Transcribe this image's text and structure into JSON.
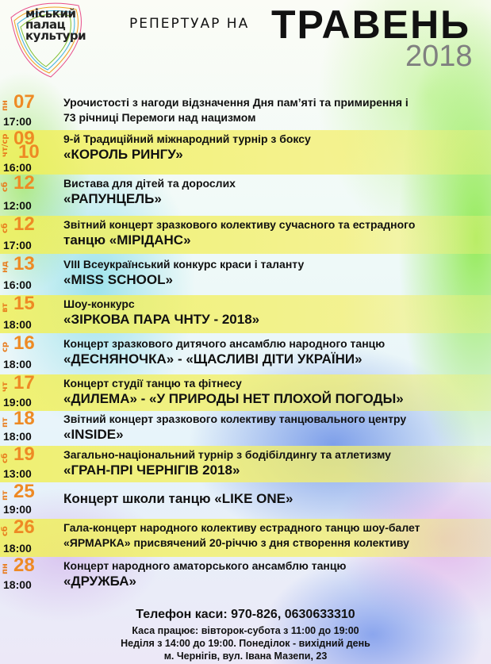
{
  "logo": {
    "line1": "міський",
    "line2": "палац",
    "line3": "культури"
  },
  "header": {
    "prefix": "РЕПЕРТУАР НА",
    "month": "ТРАВЕНЬ",
    "year": "2018"
  },
  "colors": {
    "date": "#ee8a24",
    "highlight": "#f0f05a",
    "text": "#111111"
  },
  "events": [
    {
      "dow": "пн",
      "date": "07",
      "time": "17:00",
      "line1": "Урочистості з нагоди відзначення Дня пам’яті та примирення і",
      "line2": "73 річниці Перемоги над нацизмом",
      "line2_small": true,
      "highlight": false
    },
    {
      "dow": "чт/ср",
      "date": "09",
      "date2": "10",
      "time": "16:00",
      "line1": "9-й Традиційний міжнародний турнір з боксу",
      "line2": "«КОРОЛЬ РИНГУ»",
      "highlight": true
    },
    {
      "dow": "сб",
      "date": "12",
      "time": "12:00",
      "line1": "Вистава для дітей та дорослих",
      "line2": "«РАПУНЦЕЛЬ»",
      "highlight": false
    },
    {
      "dow": "сб",
      "date": "12",
      "time": "17:00",
      "line1": "Звітний концерт зразкового колективу сучасного та естрадного",
      "line2": "танцю «МІРІДАНС»",
      "highlight": true
    },
    {
      "dow": "нд",
      "date": "13",
      "time": "16:00",
      "line1": "VIII Всеукраїнський конкурс краси і таланту",
      "line2": "«MISS SCHOOL»",
      "highlight": false
    },
    {
      "dow": "вт",
      "date": "15",
      "time": "18:00",
      "line1": "Шоу-конкурс",
      "line2": "«ЗІРКОВА ПАРА ЧНТУ - 2018»",
      "highlight": true
    },
    {
      "dow": "ср",
      "date": "16",
      "time": "18:00",
      "line1": "Концерт зразкового дитячого ансамблю народного танцю",
      "line2": " «ДЕСНЯНОЧКА» - «ЩАСЛИВІ ДІТИ УКРАЇНИ»",
      "highlight": false
    },
    {
      "dow": "чт",
      "date": "17",
      "time": "19:00",
      "line1": "Концерт студії танцю та фітнесу",
      "line2": "«ДИЛЕМА» - «У ПРИРОДЫ НЕТ ПЛОХОЙ ПОГОДЫ»",
      "highlight": true
    },
    {
      "dow": "пт",
      "date": "18",
      "time": "18:00",
      "line1": "Звітний концерт зразкового колективу танцювального центру",
      "line2": "«INSIDE»",
      "highlight": false
    },
    {
      "dow": "сб",
      "date": "19",
      "time": "13:00",
      "line1": "Загально-національний турнір з бодібілдингу та атлетизму",
      "line2": "«ГРАН-ПРІ  ЧЕРНІГІВ 2018»",
      "highlight": true
    },
    {
      "dow": "пт",
      "date": "25",
      "time": "19:00",
      "line1": "",
      "line2": "Концерт школи танцю «LIKE ONE»",
      "highlight": false
    },
    {
      "dow": "сб",
      "date": "26",
      "time": "18:00",
      "line1": "Гала-концерт народного колективу естрадного танцю шоу-балет",
      "line2": "«ЯРМАРКА» присвячений 20-річчю з дня створення колективу",
      "line2_small": true,
      "highlight": true
    },
    {
      "dow": "пн",
      "date": "28",
      "time": "18:00",
      "line1": "Концерт народного аматорського ансамблю танцю",
      "line2": "«ДРУЖБА»",
      "highlight": false
    }
  ],
  "footer": {
    "phone": "Телефон каси: 970-826, 0630633310",
    "hours1": "Каса працює: вівторок-субота з 11:00 до 19:00",
    "hours2": "Неділя з 14:00 до 19:00. Понеділок - вихідний день",
    "address": "м. Чернігів, вул. Івана Мазепи, 23"
  }
}
